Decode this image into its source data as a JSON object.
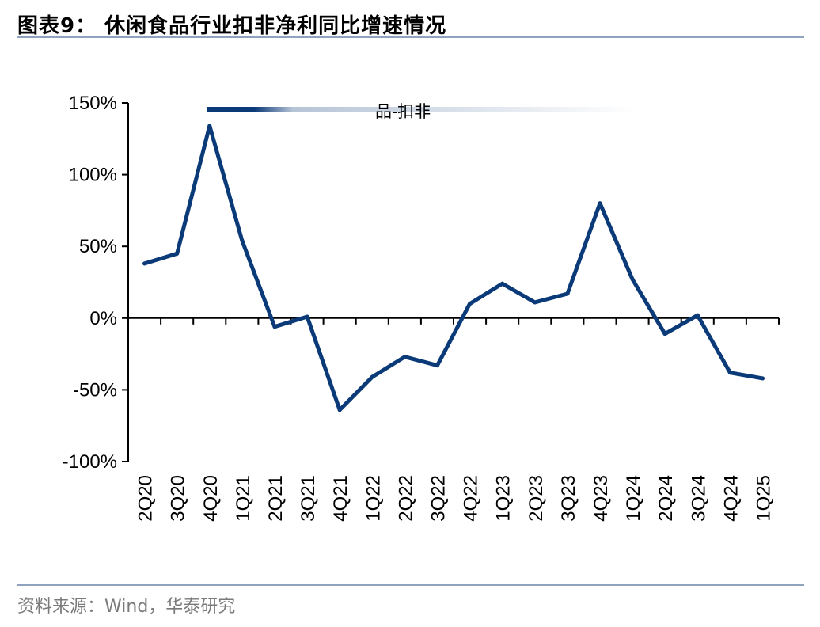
{
  "title": "图表9： 休闲食品行业扣非净利同比增速情况",
  "source": "资料来源：Wind，华泰研究",
  "colors": {
    "series": "#0b3a78",
    "rule": "#8fa3bf",
    "axis": "#000000"
  },
  "chart_data": {
    "type": "line",
    "categories": [
      "2Q20",
      "3Q20",
      "4Q20",
      "1Q21",
      "2Q21",
      "3Q21",
      "4Q21",
      "1Q22",
      "2Q22",
      "3Q22",
      "4Q22",
      "1Q23",
      "2Q23",
      "3Q23",
      "4Q23",
      "1Q24",
      "2Q24",
      "3Q24",
      "4Q24",
      "1Q25"
    ],
    "series": [
      {
        "name": "品-扣非",
        "values": [
          38,
          45,
          134,
          54,
          -6,
          1,
          -64,
          -41,
          -27,
          -33,
          10,
          24,
          11,
          17,
          80,
          27,
          -11,
          2,
          -38,
          -42
        ]
      }
    ],
    "ylim": [
      -100,
      150
    ],
    "yticks": [
      -100,
      -50,
      0,
      50,
      100,
      150
    ],
    "ytick_labels": [
      "-100%",
      "-50%",
      "0%",
      "50%",
      "100%",
      "150%"
    ],
    "legend_position": "top-center",
    "grid": false
  }
}
